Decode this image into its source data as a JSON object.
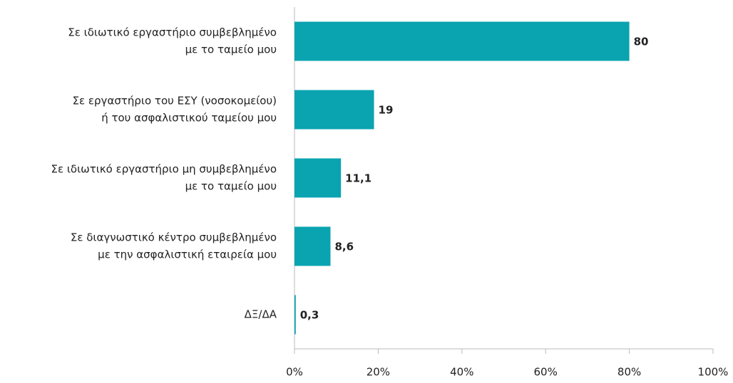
{
  "chart_data": {
    "type": "hbar",
    "categories": [
      [
        "Σε ιδιωτικό εργαστήριο συμβεβλημένο",
        "με το ταμείο μου"
      ],
      [
        "Σε εργαστήριο του ΕΣΥ (νοσοκομείου)",
        "ή του ασφαλιστικού ταμείου μου"
      ],
      [
        "Σε ιδιωτικό εργαστήριο μη συμβεβλημένο",
        "με το ταμείο μου"
      ],
      [
        "Σε διαγνωστικό κέντρο συμβεβλημένο",
        "με την ασφαλιστική εταιρεία μου"
      ],
      [
        "ΔΞ/ΔΑ"
      ]
    ],
    "values": [
      80,
      19,
      11.1,
      8.6,
      0.3
    ],
    "value_labels": [
      "80",
      "19",
      "11,1",
      "8,6",
      "0,3"
    ],
    "color": "#0aa3b0",
    "xlim": [
      0,
      100
    ],
    "xticks": [
      {
        "value": 0,
        "label": "0%"
      },
      {
        "value": 20,
        "label": "20%"
      },
      {
        "value": 40,
        "label": "40%"
      },
      {
        "value": 60,
        "label": "60%"
      },
      {
        "value": 80,
        "label": "80%"
      },
      {
        "value": 100,
        "label": "100%"
      }
    ]
  }
}
